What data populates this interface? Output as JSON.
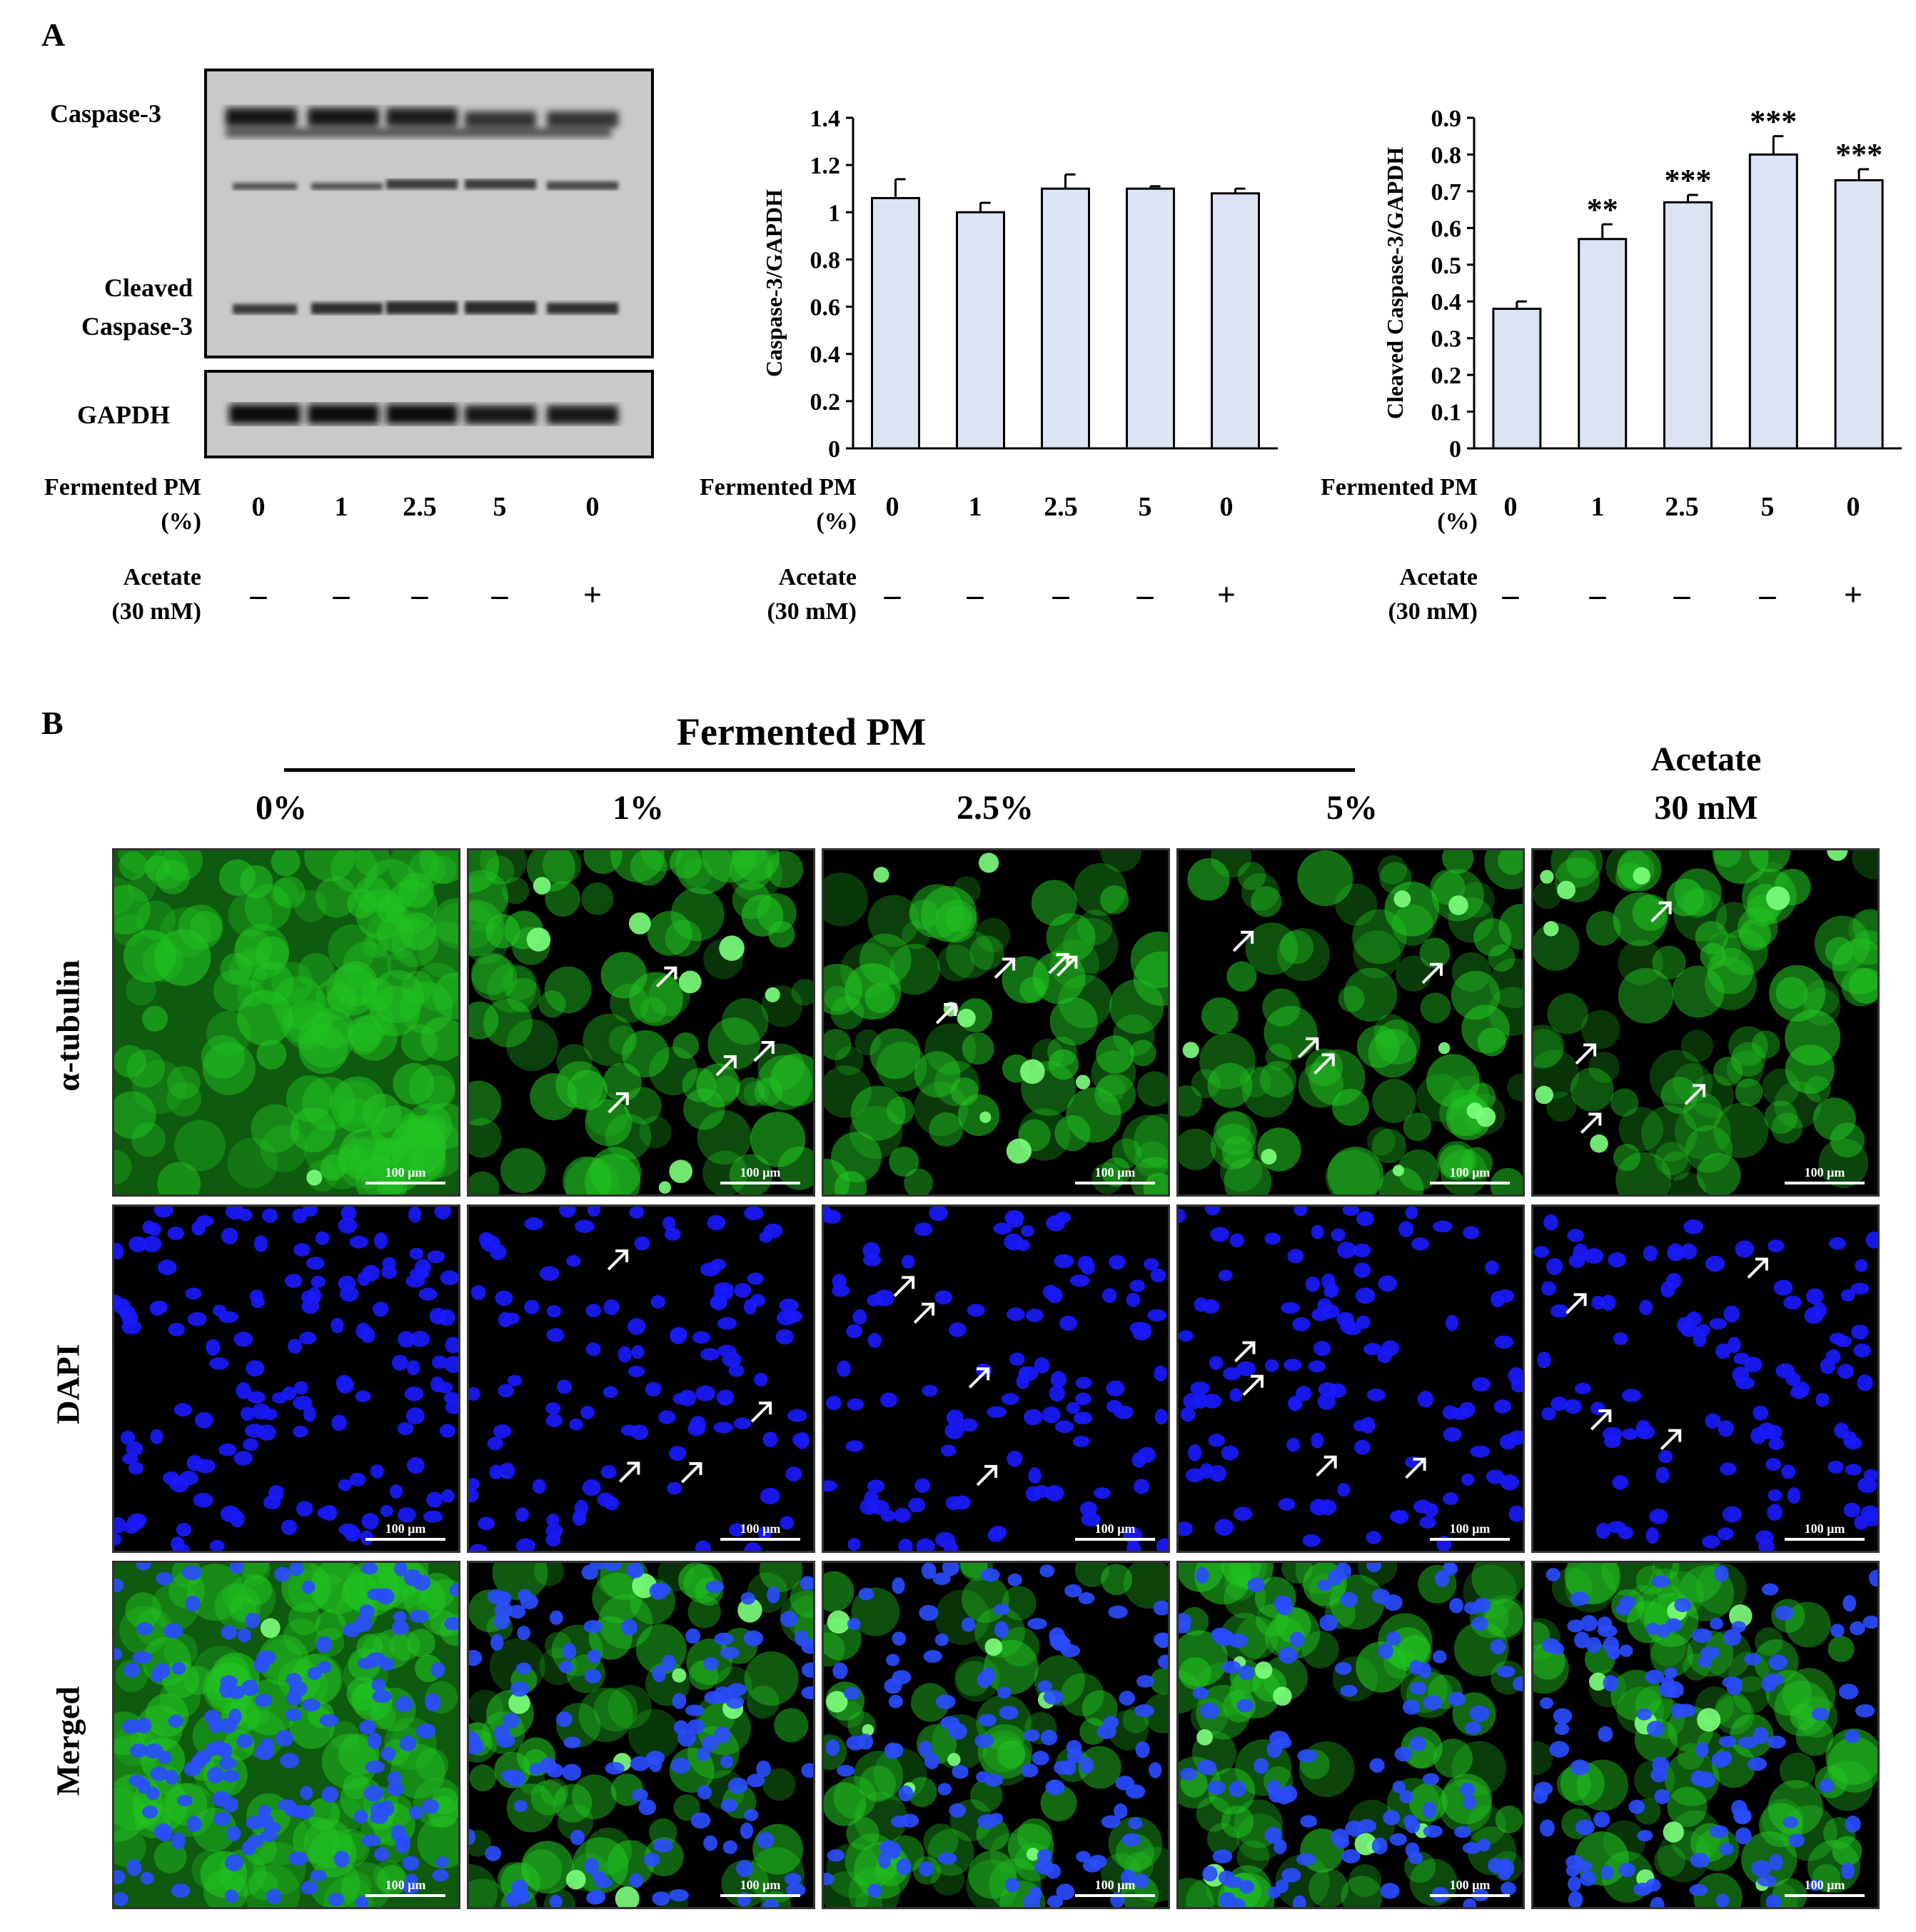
{
  "panel_a": {
    "letter": "A",
    "blot": {
      "labels": {
        "caspase3": "Caspase-3",
        "cleaved_line1": "Cleaved",
        "cleaved_line2": "Caspase-3",
        "gapdh": "GAPDH"
      }
    },
    "conditions": {
      "fermented_label_line1": "Fermented PM",
      "fermented_label_line2": "(%)",
      "fermented_values": [
        "0",
        "1",
        "2.5",
        "5",
        "0"
      ],
      "acetate_label_line1": "Acetate",
      "acetate_label_line2": "(30 mM)",
      "acetate_values": [
        "–",
        "–",
        "–",
        "–",
        "+"
      ]
    }
  },
  "chart_data": [
    {
      "type": "bar",
      "categories": [
        "0",
        "1",
        "2.5",
        "5",
        "0"
      ],
      "values": [
        1.06,
        1.0,
        1.1,
        1.1,
        1.08
      ],
      "errors": [
        0.08,
        0.04,
        0.06,
        0.01,
        0.02
      ],
      "ylabel": "Caspase-3/GAPDH",
      "ylim": [
        0,
        1.4
      ],
      "yticks": [
        "0",
        "0.2",
        "0.4",
        "0.6",
        "0.8",
        "1",
        "1.2",
        "1.4"
      ],
      "significance": [
        "",
        "",
        "",
        "",
        ""
      ],
      "bar_color": "#dce3f3"
    },
    {
      "type": "bar",
      "categories": [
        "0",
        "1",
        "2.5",
        "5",
        "0"
      ],
      "values": [
        0.38,
        0.57,
        0.67,
        0.8,
        0.73
      ],
      "errors": [
        0.02,
        0.04,
        0.02,
        0.05,
        0.03
      ],
      "ylabel": "Cleaved Caspase-3/GAPDH",
      "ylim": [
        0,
        0.9
      ],
      "yticks": [
        "0",
        "0.1",
        "0.2",
        "0.3",
        "0.4",
        "0.5",
        "0.6",
        "0.7",
        "0.8",
        "0.9"
      ],
      "significance": [
        "",
        "**",
        "***",
        "***",
        "***"
      ],
      "bar_color": "#dce3f3"
    }
  ],
  "panel_b": {
    "letter": "B",
    "fermented_header": "Fermented PM",
    "acetate_header_line1": "Acetate",
    "acetate_header_line2": "30 mM",
    "columns": [
      "0%",
      "1%",
      "2.5%",
      "5%"
    ],
    "rows": [
      "α-tubulin",
      "DAPI",
      "Merged"
    ],
    "scale_bar": "100 µm",
    "colors": {
      "tubulin": "#22c422",
      "dapi": "#1a1aff",
      "background": "#000000"
    }
  }
}
